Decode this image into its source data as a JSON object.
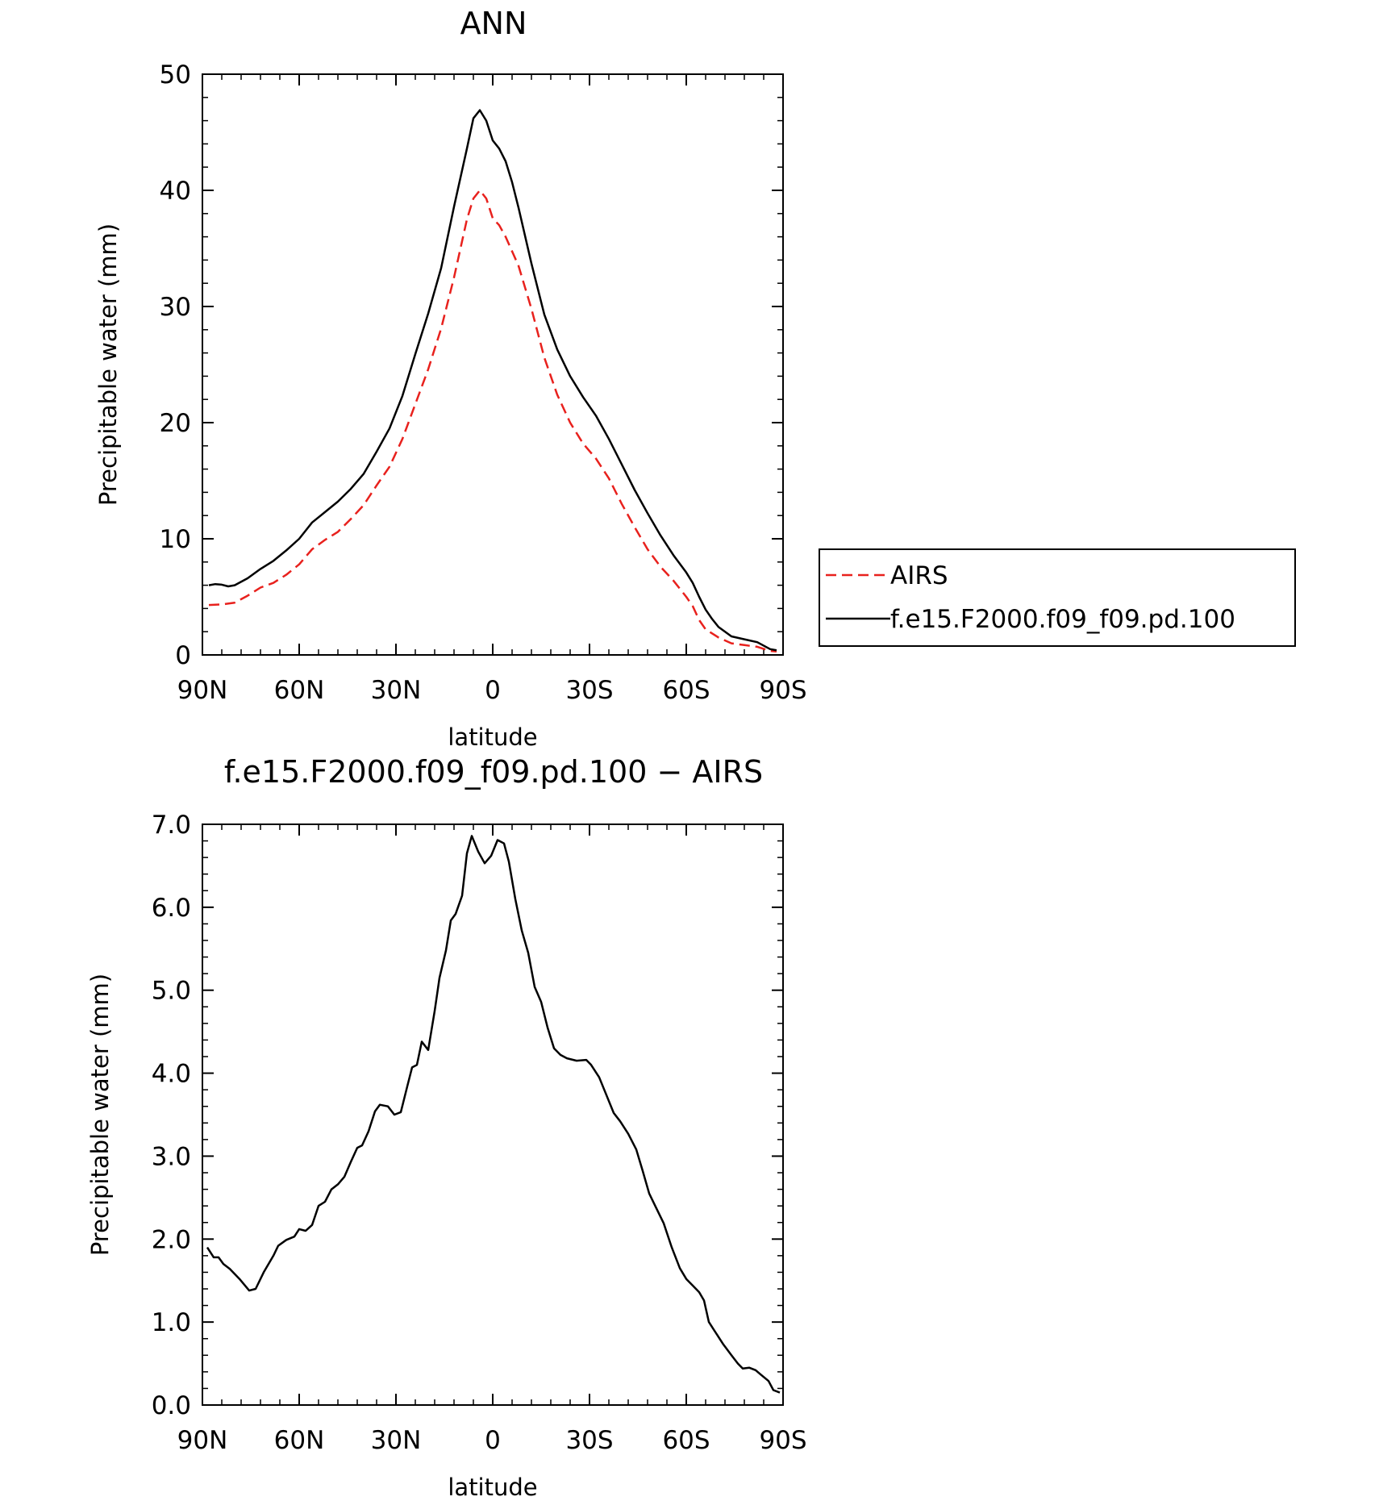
{
  "chart_data": [
    {
      "type": "line",
      "title": "ANN",
      "xlabel": "latitude",
      "ylabel": "Precipitable water (mm)",
      "xlim": [
        90,
        -90
      ],
      "ylim": [
        0,
        50
      ],
      "x_ticks": [
        90,
        60,
        30,
        0,
        -30,
        -60,
        -90
      ],
      "x_tick_labels": [
        "90N",
        "60N",
        "30N",
        "0",
        "30S",
        "60S",
        "90S"
      ],
      "y_ticks": [
        0,
        10,
        20,
        30,
        40,
        50
      ],
      "y_tick_labels": [
        "0",
        "10",
        "20",
        "30",
        "40",
        "50"
      ],
      "grid": false,
      "legend": "right",
      "series": [
        {
          "name": "AIRS",
          "color": "#e8211d",
          "dash": "dashed",
          "points": [
            [
              88,
              4.3
            ],
            [
              84,
              4.35
            ],
            [
              80,
              4.5
            ],
            [
              76,
              5.1
            ],
            [
              72,
              5.8
            ],
            [
              68,
              6.2
            ],
            [
              64,
              6.9
            ],
            [
              60,
              7.8
            ],
            [
              56,
              9.1
            ],
            [
              52,
              9.9
            ],
            [
              48,
              10.6
            ],
            [
              44,
              11.7
            ],
            [
              40,
              12.9
            ],
            [
              36,
              14.6
            ],
            [
              32,
              16.2
            ],
            [
              28,
              18.6
            ],
            [
              24,
              21.6
            ],
            [
              20,
              24.6
            ],
            [
              16,
              28.1
            ],
            [
              12,
              32.5
            ],
            [
              8,
              37.5
            ],
            [
              6,
              39.3
            ],
            [
              4,
              40
            ],
            [
              2,
              39.3
            ],
            [
              0,
              37.6
            ],
            [
              -2,
              37
            ],
            [
              -4,
              36
            ],
            [
              -8,
              33.5
            ],
            [
              -12,
              29.8
            ],
            [
              -16,
              25.6
            ],
            [
              -20,
              22.4
            ],
            [
              -24,
              20
            ],
            [
              -28,
              18.2
            ],
            [
              -32,
              16.9
            ],
            [
              -36,
              15.2
            ],
            [
              -40,
              13
            ],
            [
              -44,
              11
            ],
            [
              -48,
              9.1
            ],
            [
              -52,
              7.6
            ],
            [
              -56,
              6.4
            ],
            [
              -60,
              5
            ],
            [
              -62,
              4.2
            ],
            [
              -64,
              3
            ],
            [
              -66,
              2.2
            ],
            [
              -70,
              1.5
            ],
            [
              -74,
              1
            ],
            [
              -78,
              0.85
            ],
            [
              -82,
              0.7
            ],
            [
              -86,
              0.35
            ],
            [
              -88,
              0.3
            ]
          ]
        },
        {
          "name": "f.e15.F2000.f09_f09.pd.100",
          "color": "#000000",
          "dash": "solid",
          "points": [
            [
              88,
              6
            ],
            [
              86,
              6.1
            ],
            [
              84,
              6.05
            ],
            [
              82,
              5.9
            ],
            [
              80,
              6
            ],
            [
              76,
              6.6
            ],
            [
              72,
              7.4
            ],
            [
              68,
              8.1
            ],
            [
              64,
              9
            ],
            [
              60,
              10
            ],
            [
              56,
              11.4
            ],
            [
              52,
              12.3
            ],
            [
              48,
              13.2
            ],
            [
              44,
              14.3
            ],
            [
              40,
              15.6
            ],
            [
              36,
              17.5
            ],
            [
              32,
              19.5
            ],
            [
              28,
              22.3
            ],
            [
              24,
              25.9
            ],
            [
              20,
              29.4
            ],
            [
              16,
              33.3
            ],
            [
              12,
              38.6
            ],
            [
              8,
              43.6
            ],
            [
              6,
              46.2
            ],
            [
              4,
              46.9
            ],
            [
              2,
              46
            ],
            [
              0,
              44.3
            ],
            [
              -2,
              43.6
            ],
            [
              -4,
              42.5
            ],
            [
              -6,
              40.7
            ],
            [
              -8,
              38.5
            ],
            [
              -12,
              33.7
            ],
            [
              -16,
              29.3
            ],
            [
              -20,
              26.3
            ],
            [
              -24,
              24
            ],
            [
              -28,
              22.2
            ],
            [
              -32,
              20.6
            ],
            [
              -36,
              18.6
            ],
            [
              -40,
              16.4
            ],
            [
              -44,
              14.2
            ],
            [
              -48,
              12.2
            ],
            [
              -52,
              10.3
            ],
            [
              -56,
              8.6
            ],
            [
              -60,
              7.1
            ],
            [
              -62,
              6.2
            ],
            [
              -64,
              5
            ],
            [
              -66,
              3.9
            ],
            [
              -68,
              3.1
            ],
            [
              -70,
              2.4
            ],
            [
              -74,
              1.6
            ],
            [
              -78,
              1.35
            ],
            [
              -82,
              1.1
            ],
            [
              -86,
              0.5
            ],
            [
              -88,
              0.4
            ]
          ]
        }
      ]
    },
    {
      "type": "line",
      "title": "f.e15.F2000.f09_f09.pd.100 − AIRS",
      "xlabel": "latitude",
      "ylabel": "Precipitable water (mm)",
      "xlim": [
        90,
        -90
      ],
      "ylim": [
        0,
        7
      ],
      "x_ticks": [
        90,
        60,
        30,
        0,
        -30,
        -60,
        -90
      ],
      "x_tick_labels": [
        "90N",
        "60N",
        "30N",
        "0",
        "30S",
        "60S",
        "90S"
      ],
      "y_ticks": [
        0,
        1,
        2,
        3,
        4,
        5,
        6,
        7
      ],
      "y_tick_labels": [
        "0.0",
        "1.0",
        "2.0",
        "3.0",
        "4.0",
        "5.0",
        "6.0",
        "7.0"
      ],
      "grid": false,
      "series": [
        {
          "color": "#000000",
          "dash": "solid",
          "points": [
            [
              88.5,
              1.9
            ],
            [
              86.5,
              1.78
            ],
            [
              85,
              1.78
            ],
            [
              83.5,
              1.7
            ],
            [
              81.5,
              1.64
            ],
            [
              78.5,
              1.52
            ],
            [
              75.5,
              1.38
            ],
            [
              73.5,
              1.4
            ],
            [
              71,
              1.6
            ],
            [
              68,
              1.8
            ],
            [
              66.5,
              1.92
            ],
            [
              64,
              1.99
            ],
            [
              61.5,
              2.03
            ],
            [
              60,
              2.12
            ],
            [
              58,
              2.1
            ],
            [
              56,
              2.17
            ],
            [
              54,
              2.4
            ],
            [
              52,
              2.45
            ],
            [
              50,
              2.6
            ],
            [
              48,
              2.66
            ],
            [
              46,
              2.75
            ],
            [
              44,
              2.93
            ],
            [
              42,
              3.1
            ],
            [
              40.5,
              3.13
            ],
            [
              38.5,
              3.3
            ],
            [
              36.5,
              3.54
            ],
            [
              35,
              3.62
            ],
            [
              32.5,
              3.6
            ],
            [
              30.5,
              3.5
            ],
            [
              28.5,
              3.53
            ],
            [
              26.5,
              3.84
            ],
            [
              25,
              4.07
            ],
            [
              23.5,
              4.1
            ],
            [
              22,
              4.38
            ],
            [
              20,
              4.28
            ],
            [
              18,
              4.75
            ],
            [
              16.5,
              5.15
            ],
            [
              14.5,
              5.48
            ],
            [
              13,
              5.84
            ],
            [
              11.5,
              5.92
            ],
            [
              9.5,
              6.14
            ],
            [
              8,
              6.65
            ],
            [
              6.5,
              6.86
            ],
            [
              4.5,
              6.67
            ],
            [
              2.5,
              6.53
            ],
            [
              0.5,
              6.62
            ],
            [
              -1.5,
              6.81
            ],
            [
              -3.5,
              6.77
            ],
            [
              -5,
              6.55
            ],
            [
              -7,
              6.1
            ],
            [
              -9,
              5.72
            ],
            [
              -11,
              5.45
            ],
            [
              -13,
              5.04
            ],
            [
              -15,
              4.86
            ],
            [
              -17,
              4.55
            ],
            [
              -19,
              4.3
            ],
            [
              -21,
              4.22
            ],
            [
              -23,
              4.18
            ],
            [
              -26,
              4.15
            ],
            [
              -29,
              4.16
            ],
            [
              -30.5,
              4.1
            ],
            [
              -33,
              3.95
            ],
            [
              -35,
              3.76
            ],
            [
              -37.5,
              3.52
            ],
            [
              -39.5,
              3.42
            ],
            [
              -42,
              3.27
            ],
            [
              -44.5,
              3.08
            ],
            [
              -46.5,
              2.82
            ],
            [
              -48.5,
              2.55
            ],
            [
              -50.5,
              2.39
            ],
            [
              -53,
              2.19
            ],
            [
              -55.5,
              1.9
            ],
            [
              -58,
              1.65
            ],
            [
              -60,
              1.52
            ],
            [
              -62,
              1.44
            ],
            [
              -64,
              1.36
            ],
            [
              -65.5,
              1.26
            ],
            [
              -67,
              1.0
            ],
            [
              -69,
              0.88
            ],
            [
              -71.5,
              0.73
            ],
            [
              -74,
              0.6
            ],
            [
              -76,
              0.5
            ],
            [
              -77.5,
              0.44
            ],
            [
              -79.5,
              0.45
            ],
            [
              -81.5,
              0.42
            ],
            [
              -83,
              0.37
            ],
            [
              -85.5,
              0.29
            ],
            [
              -87,
              0.18
            ],
            [
              -89,
              0.15
            ]
          ]
        }
      ]
    }
  ]
}
